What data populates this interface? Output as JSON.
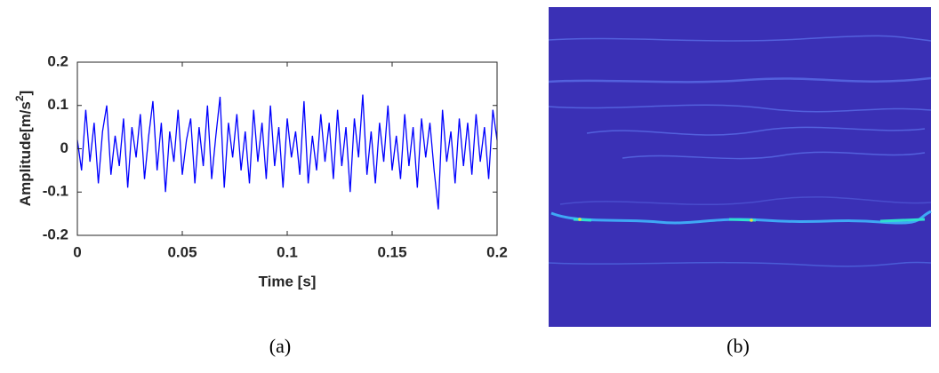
{
  "chart_data": {
    "type": "line",
    "xlabel": "Time [s]",
    "ylabel": "Amplitude[m/s",
    "ylabel_sup": "2",
    "ylabel_end": "]",
    "caption": "(a)",
    "x": [
      0,
      0.002,
      0.004,
      0.006,
      0.008,
      0.01,
      0.012,
      0.014,
      0.016,
      0.018,
      0.02,
      0.022,
      0.024,
      0.026,
      0.028,
      0.03,
      0.032,
      0.034,
      0.036,
      0.038,
      0.04,
      0.042,
      0.044,
      0.046,
      0.048,
      0.05,
      0.052,
      0.054,
      0.056,
      0.058,
      0.06,
      0.062,
      0.064,
      0.066,
      0.068,
      0.07,
      0.072,
      0.074,
      0.076,
      0.078,
      0.08,
      0.082,
      0.084,
      0.086,
      0.088,
      0.09,
      0.092,
      0.094,
      0.096,
      0.098,
      0.1,
      0.102,
      0.104,
      0.106,
      0.108,
      0.11,
      0.112,
      0.114,
      0.116,
      0.118,
      0.12,
      0.122,
      0.124,
      0.126,
      0.128,
      0.13,
      0.132,
      0.134,
      0.136,
      0.138,
      0.14,
      0.142,
      0.144,
      0.146,
      0.148,
      0.15,
      0.152,
      0.154,
      0.156,
      0.158,
      0.16,
      0.162,
      0.164,
      0.166,
      0.168,
      0.17,
      0.172,
      0.174,
      0.176,
      0.178,
      0.18,
      0.182,
      0.184,
      0.186,
      0.188,
      0.19,
      0.192,
      0.194,
      0.196,
      0.198,
      0.2
    ],
    "series": [
      {
        "name": "Amplitude",
        "color": "#0000ff",
        "values": [
          0.02,
          -0.05,
          0.09,
          -0.03,
          0.06,
          -0.08,
          0.04,
          0.1,
          -0.06,
          0.03,
          -0.04,
          0.07,
          -0.09,
          0.05,
          -0.02,
          0.08,
          -0.07,
          0.03,
          0.11,
          -0.05,
          0.06,
          -0.1,
          0.04,
          -0.03,
          0.09,
          -0.06,
          0.02,
          0.07,
          -0.08,
          0.05,
          -0.04,
          0.1,
          -0.07,
          0.03,
          0.12,
          -0.09,
          0.06,
          -0.02,
          0.08,
          -0.05,
          0.04,
          -0.08,
          0.09,
          -0.03,
          0.06,
          -0.07,
          0.1,
          -0.04,
          0.05,
          -0.09,
          0.07,
          -0.02,
          0.04,
          -0.06,
          0.11,
          -0.08,
          0.03,
          -0.05,
          0.08,
          -0.03,
          0.06,
          -0.07,
          0.09,
          -0.04,
          0.05,
          -0.1,
          0.07,
          -0.02,
          0.125,
          -0.06,
          0.04,
          -0.08,
          0.06,
          -0.03,
          0.1,
          -0.05,
          0.03,
          -0.07,
          0.08,
          -0.04,
          0.05,
          -0.09,
          0.07,
          -0.02,
          0.06,
          -0.05,
          -0.14,
          0.09,
          -0.03,
          0.04,
          -0.08,
          0.07,
          -0.04,
          0.06,
          -0.06,
          0.08,
          -0.03,
          0.05,
          -0.07,
          0.09,
          0.02
        ]
      }
    ],
    "xlim": [
      0,
      0.2
    ],
    "xticks": [
      0,
      0.05,
      0.1,
      0.15,
      0.2
    ],
    "ylim": [
      -0.2,
      0.2
    ],
    "yticks": [
      -0.2,
      -0.1,
      0,
      0.1,
      0.2
    ]
  },
  "image_panel": {
    "caption": "(b)"
  }
}
